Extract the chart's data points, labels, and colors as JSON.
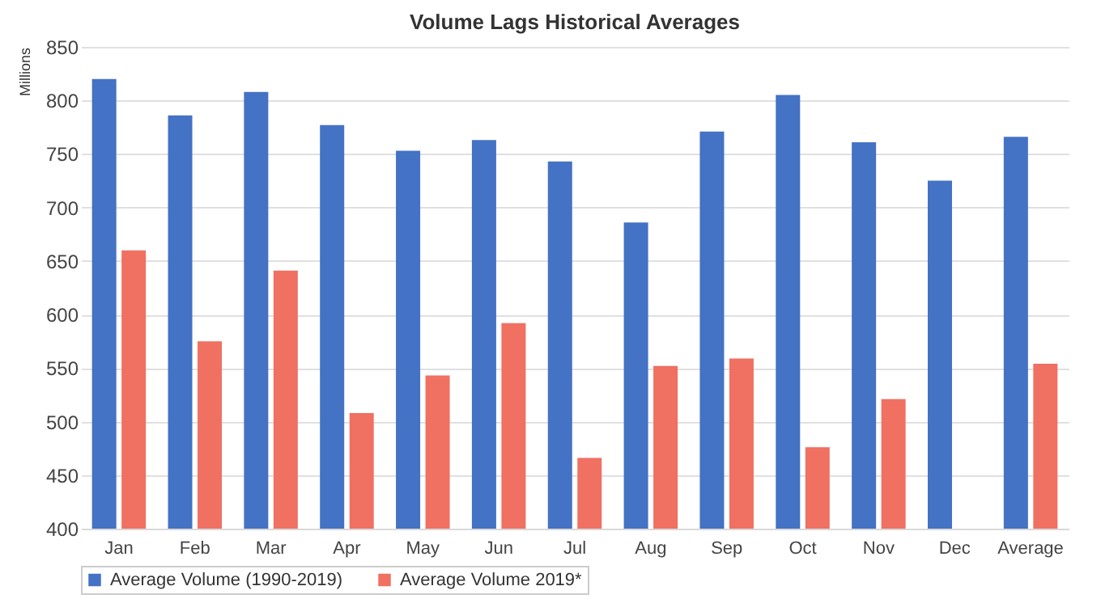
{
  "chart_data": {
    "type": "bar",
    "title": "Volume Lags Historical Averages",
    "ylabel": "Millions",
    "categories": [
      "Jan",
      "Feb",
      "Mar",
      "Apr",
      "May",
      "Jun",
      "Jul",
      "Aug",
      "Sep",
      "Oct",
      "Nov",
      "Dec",
      "Average"
    ],
    "series": [
      {
        "name": "Average Volume (1990-2019)",
        "color": "#4472c4",
        "values": [
          820,
          786,
          808,
          777,
          753,
          763,
          743,
          686,
          771,
          805,
          761,
          725,
          766
        ]
      },
      {
        "name": "Average Volume 2019*",
        "color": "#f07062",
        "values": [
          660,
          575,
          641,
          508,
          543,
          592,
          466,
          552,
          559,
          476,
          521,
          null,
          554
        ]
      }
    ],
    "ylim": [
      400,
      850
    ],
    "yticks": [
      400,
      450,
      500,
      550,
      600,
      650,
      700,
      750,
      800,
      850
    ],
    "grid": "y",
    "legend": "bottom"
  }
}
